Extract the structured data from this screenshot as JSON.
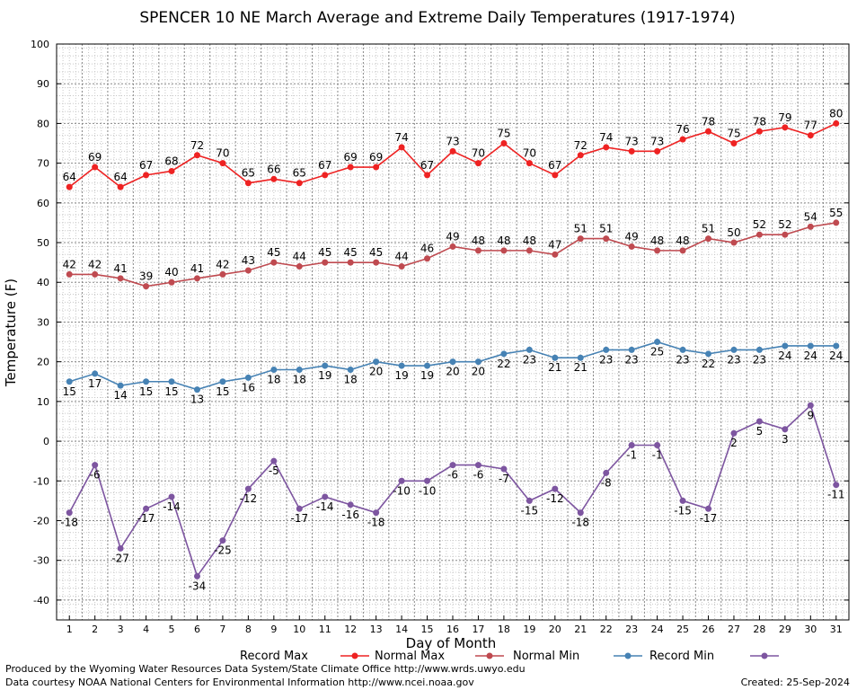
{
  "chart_data": {
    "type": "line",
    "title": "SPENCER 10 NE March Average and Extreme Daily Temperatures (1917-1974)",
    "xlabel": "Day of Month",
    "ylabel": "Temperature (F)",
    "ylim": [
      -45,
      100
    ],
    "yticks": [
      100,
      90,
      80,
      70,
      60,
      50,
      40,
      30,
      20,
      10,
      0,
      -10,
      -20,
      -30,
      -40
    ],
    "x": [
      1,
      2,
      3,
      4,
      5,
      6,
      7,
      8,
      9,
      10,
      11,
      12,
      13,
      14,
      15,
      16,
      17,
      18,
      19,
      20,
      21,
      22,
      23,
      24,
      25,
      26,
      27,
      28,
      29,
      30,
      31
    ],
    "grid": true,
    "legend_placement": "bottom",
    "series": [
      {
        "name": "Record Max",
        "color": "#ee2222",
        "values": [
          64,
          69,
          64,
          67,
          68,
          72,
          70,
          65,
          66,
          65,
          67,
          69,
          69,
          74,
          67,
          73,
          70,
          75,
          70,
          67,
          72,
          74,
          73,
          73,
          76,
          78,
          75,
          78,
          79,
          77,
          80
        ]
      },
      {
        "name": "Normal Max",
        "color": "#bf4a50",
        "values": [
          42,
          42,
          41,
          39,
          40,
          41,
          42,
          43,
          45,
          44,
          45,
          45,
          45,
          44,
          46,
          49,
          48,
          48,
          48,
          47,
          51,
          51,
          49,
          48,
          48,
          51,
          50,
          52,
          52,
          54,
          55
        ]
      },
      {
        "name": "Normal Min",
        "color": "#4682b4",
        "values": [
          15,
          17,
          14,
          15,
          15,
          13,
          15,
          16,
          18,
          18,
          19,
          18,
          20,
          19,
          19,
          20,
          20,
          22,
          23,
          21,
          21,
          23,
          23,
          25,
          23,
          22,
          23,
          23,
          24,
          24,
          24
        ]
      },
      {
        "name": "Record Min",
        "color": "#7d55a0",
        "values": [
          -18,
          -6,
          -27,
          -17,
          -14,
          -34,
          -25,
          -12,
          -5,
          -17,
          -14,
          -16,
          -18,
          -10,
          -10,
          -6,
          -6,
          -7,
          -15,
          -12,
          -18,
          -8,
          -1,
          -1,
          -15,
          -17,
          2,
          5,
          3,
          9,
          -11
        ]
      }
    ]
  },
  "footer": {
    "produced_by": "Produced by the Wyoming Water Resources Data System/State Climate Office http://www.wrds.uwyo.edu",
    "courtesy": "Data courtesy NOAA National Centers for Environmental Information http://www.ncei.noaa.gov",
    "created": "Created:  25-Sep-2024"
  }
}
